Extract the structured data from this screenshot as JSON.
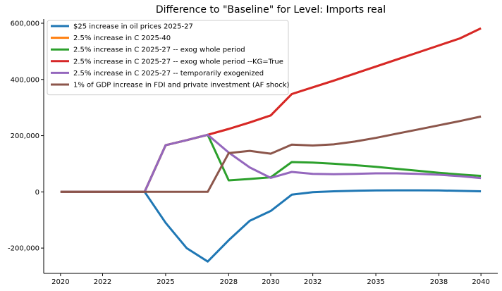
{
  "chart_data": {
    "type": "line",
    "title": "Difference to \"Baseline\" for Level: Imports real",
    "xlabel": "",
    "ylabel": "",
    "xlim": [
      2019.2,
      2040.8
    ],
    "ylim": [
      -290000,
      615000
    ],
    "x_ticks": [
      2020,
      2022,
      2025,
      2028,
      2030,
      2032,
      2035,
      2038,
      2040
    ],
    "x_tick_labels": [
      "2020",
      "2022",
      "2025",
      "2028",
      "2030",
      "2032",
      "2035",
      "2038",
      "2040"
    ],
    "y_ticks": [
      -200000,
      0,
      200000,
      400000,
      600000
    ],
    "y_tick_labels": [
      "-200,000",
      "0",
      "200,000",
      "400,000",
      "600,000"
    ],
    "grid": false,
    "legend_position": "top-left",
    "x": [
      2020,
      2021,
      2022,
      2023,
      2024,
      2025,
      2026,
      2027,
      2028,
      2029,
      2030,
      2031,
      2032,
      2033,
      2034,
      2035,
      2036,
      2037,
      2038,
      2039,
      2040
    ],
    "series": [
      {
        "name": "$25 increase in oil prices 2025-27",
        "color": "#1f77b4",
        "values": [
          0,
          0,
          0,
          0,
          0,
          -110000,
          -200000,
          -248000,
          -172000,
          -103000,
          -68000,
          -10000,
          -1000,
          2000,
          4000,
          5000,
          5500,
          5500,
          5000,
          3500,
          2000
        ]
      },
      {
        "name": "2.5% increase in C 2025-40",
        "color": "#ff7f0e",
        "values": [
          0,
          0,
          0,
          0,
          0,
          166000,
          184000,
          203000,
          224000,
          247000,
          272000,
          348000,
          372000,
          396000,
          421000,
          446000,
          471000,
          496000,
          521000,
          546000,
          582000
        ]
      },
      {
        "name": "2.5% increase in C 2025-27 -- exog whole period",
        "color": "#2ca02c",
        "values": [
          0,
          0,
          0,
          0,
          0,
          166000,
          184000,
          203000,
          41000,
          46000,
          52000,
          106000,
          104000,
          100000,
          95000,
          89000,
          82000,
          75000,
          68000,
          62000,
          57000
        ]
      },
      {
        "name": "2.5% increase in C 2025-27 -- exog whole period --KG=True",
        "color": "#d62728",
        "values": [
          0,
          0,
          0,
          0,
          0,
          166000,
          184000,
          203000,
          224000,
          247000,
          272000,
          348000,
          372000,
          396000,
          421000,
          446000,
          471000,
          496000,
          521000,
          546000,
          582000
        ]
      },
      {
        "name": "2.5% increase in C 2025-27 -- temporarily exogenized",
        "color": "#9467bd",
        "values": [
          0,
          0,
          0,
          0,
          0,
          166000,
          184000,
          203000,
          140000,
          87000,
          50000,
          71000,
          64000,
          63000,
          64000,
          66000,
          66000,
          64000,
          61000,
          56000,
          49000
        ]
      },
      {
        "name": "1% of GDP increase in FDI and private investment (AF shock)",
        "color": "#8c564b",
        "values": [
          0,
          0,
          0,
          0,
          0,
          0,
          0,
          0,
          138000,
          146000,
          136000,
          168000,
          165000,
          169000,
          179000,
          192000,
          207000,
          222000,
          237000,
          252000,
          268000
        ]
      }
    ]
  }
}
